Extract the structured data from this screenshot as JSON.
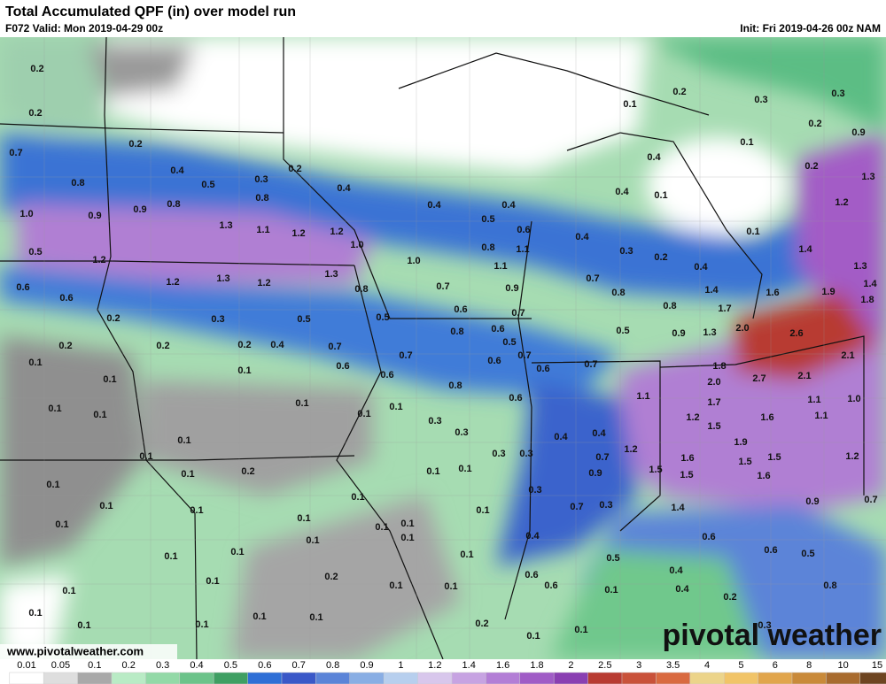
{
  "header": {
    "title": "Total Accumulated QPF (in) over model run",
    "valid": "F072 Valid: Mon 2019-04-29 00z",
    "init": "Init: Fri 2019-04-26 00z NAM"
  },
  "map_labels": [
    "0.2",
    "0.2",
    "0.7",
    "0.2",
    "0.8",
    "0.4",
    "0.5",
    "0.3",
    "0.2",
    "0.4",
    "0.8",
    "0.9",
    "0.8",
    "1.0",
    "0.9",
    "1.3",
    "1.1",
    "1.2",
    "1.2",
    "1.0",
    "0.4",
    "0.5",
    "0.4",
    "0.6",
    "0.8",
    "1.1",
    "1.1",
    "1.0",
    "0.5",
    "1.2",
    "1.2",
    "1.3",
    "1.2",
    "1.3",
    "0.6",
    "0.6",
    "0.8",
    "0.7",
    "0.9",
    "0.6",
    "0.7",
    "0.2",
    "0.3",
    "0.5",
    "0.5",
    "0.8",
    "0.6",
    "0.5",
    "0.7",
    "0.6",
    "0.7",
    "0.6",
    "0.6",
    "0.7",
    "0.6",
    "0.8",
    "0.6",
    "0.2",
    "0.2",
    "0.2",
    "0.4",
    "0.1",
    "0.1",
    "0.1",
    "0.1",
    "0.1",
    "0.1",
    "0.1",
    "0.1",
    "0.3",
    "0.3",
    "0.4",
    "0.4",
    "0.3",
    "0.3",
    "0.1",
    "0.1",
    "0.1",
    "0.2",
    "0.1",
    "0.1",
    "0.1",
    "0.1",
    "0.1",
    "0.1",
    "0.1",
    "0.1",
    "0.3",
    "0.1",
    "0.1",
    "0.1",
    "0.1",
    "0.1",
    "0.1",
    "0.1",
    "0.1",
    "0.4",
    "0.2",
    "0.1",
    "0.1",
    "0.1",
    "0.1",
    "0.1",
    "0.1",
    "0.1",
    "0.1",
    "0.1",
    "0.2",
    "0.1",
    "0.1",
    "0.1",
    "0.6",
    "0.6",
    "0.5",
    "0.7",
    "0.3",
    "0.9",
    "0.7",
    "1.2",
    "1.5",
    "1.5",
    "1.6",
    "1.1",
    "1.2",
    "1.5",
    "1.9",
    "1.5",
    "1.5",
    "1.6",
    "1.6",
    "1.1",
    "1.1",
    "1.0",
    "1.2",
    "0.9",
    "0.7",
    "0.5",
    "0.6",
    "0.8",
    "0.3",
    "0.2",
    "0.4",
    "0.4",
    "0.6",
    "1.4",
    "0.7",
    "1.7",
    "2.0",
    "1.8",
    "1.3",
    "0.9",
    "0.5",
    "0.8",
    "0.8",
    "0.7",
    "0.4",
    "0.3",
    "0.2",
    "0.4",
    "1.4",
    "1.7",
    "1.6",
    "2.0",
    "2.6",
    "1.9",
    "1.8",
    "1.4",
    "1.3",
    "1.4",
    "2.1",
    "2.1",
    "2.7",
    "0.1",
    "1.2",
    "1.3",
    "0.9",
    "0.2",
    "0.2",
    "0.1",
    "0.3",
    "0.3",
    "0.2",
    "0.1",
    "0.4",
    "0.4",
    "0.1"
  ],
  "colorbar": {
    "labels": [
      "0.01",
      "0.05",
      "0.1",
      "0.2",
      "0.3",
      "0.4",
      "0.5",
      "0.6",
      "0.7",
      "0.8",
      "0.9",
      "1",
      "1.2",
      "1.4",
      "1.6",
      "1.8",
      "2",
      "2.5",
      "3",
      "3.5",
      "4",
      "5",
      "6",
      "8",
      "10",
      "15"
    ],
    "colors": [
      "#ffffff",
      "#dedede",
      "#a9a9a9",
      "#b9ebc5",
      "#93d9a7",
      "#6cc38a",
      "#3f9f63",
      "#2f6fd6",
      "#3a58c8",
      "#5b84d8",
      "#89aee4",
      "#b7cfee",
      "#d8c7ec",
      "#c7a3e2",
      "#b37ed6",
      "#a05cc6",
      "#8a3fb2",
      "#b83b32",
      "#c9523a",
      "#d96a40",
      "#ecd48a",
      "#f1c468",
      "#e1a54c",
      "#c98a3a",
      "#a86b2e",
      "#6e4521"
    ]
  },
  "footer": {
    "website": "www.pivotalweather.com",
    "logo": "pivotal weather"
  }
}
